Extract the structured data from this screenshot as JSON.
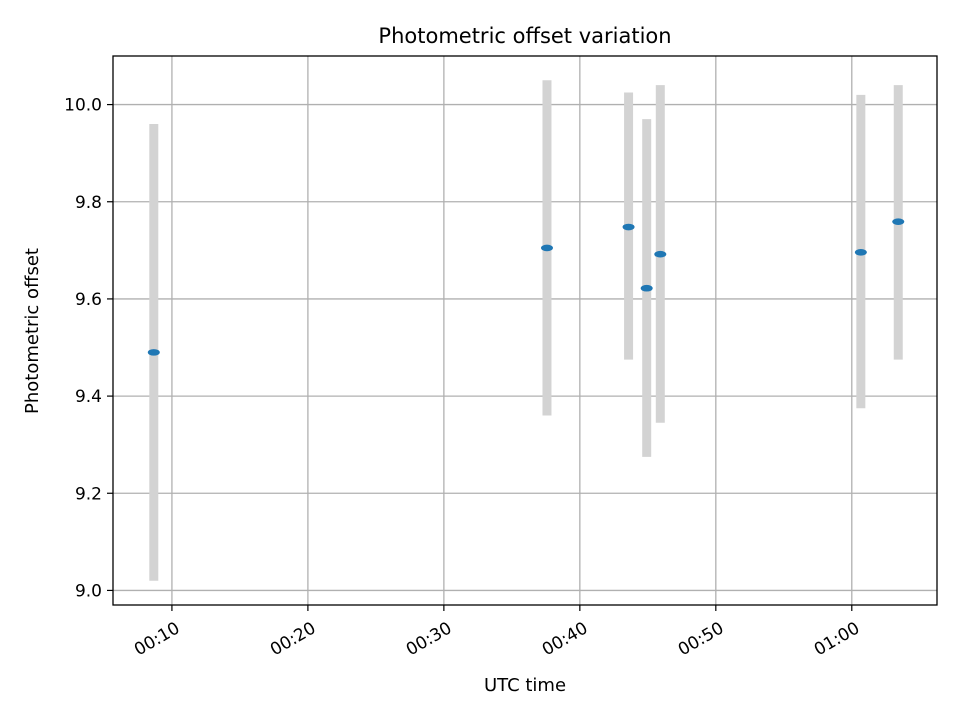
{
  "chart_data": {
    "type": "scatter",
    "title": "Photometric offset variation",
    "xlabel": "UTC time",
    "ylabel": "Photometric offset",
    "xlim": [
      "00:05:40",
      "01:06:16"
    ],
    "ylim": [
      8.97,
      10.1
    ],
    "x_ticks": [
      "00:10",
      "00:20",
      "00:30",
      "00:40",
      "00:50",
      "01:00"
    ],
    "y_ticks": [
      9.0,
      9.2,
      9.4,
      9.6,
      9.8,
      10.0
    ],
    "grid": true,
    "points": [
      {
        "x": "00:08:40",
        "y": 9.49,
        "err_low": 9.02,
        "err_high": 9.96
      },
      {
        "x": "00:37:35",
        "y": 9.705,
        "err_low": 9.36,
        "err_high": 10.05
      },
      {
        "x": "00:43:35",
        "y": 9.748,
        "err_low": 9.475,
        "err_high": 10.025
      },
      {
        "x": "00:44:55",
        "y": 9.622,
        "err_low": 9.275,
        "err_high": 9.97
      },
      {
        "x": "00:45:55",
        "y": 9.692,
        "err_low": 9.345,
        "err_high": 10.04
      },
      {
        "x": "01:00:40",
        "y": 9.696,
        "err_low": 9.375,
        "err_high": 10.02
      },
      {
        "x": "01:03:25",
        "y": 9.759,
        "err_low": 9.475,
        "err_high": 10.04
      }
    ],
    "colors": {
      "marker": "#1f77b4",
      "errorbar": "#d3d3d3",
      "grid": "#b0b0b0",
      "axes": "#000000"
    }
  }
}
